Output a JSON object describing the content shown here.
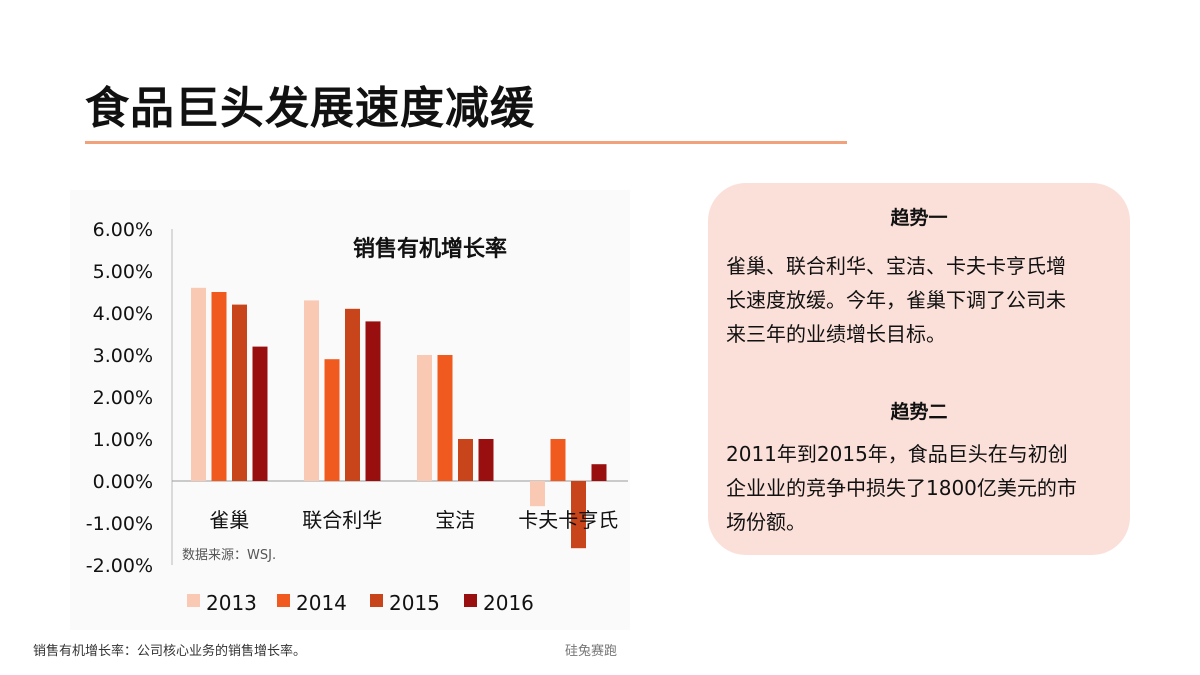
{
  "slide": {
    "title": "食品巨头发展速度减缓",
    "footnote": "销售有机增长率：公司核心业务的销售增长率。",
    "watermark": "硅兔赛跑",
    "accent_color": "#f2a27a"
  },
  "trends": {
    "box_color": "#fbe0d9",
    "trend1_heading": "趋势一",
    "trend1_lines": [
      "雀巢、联合利华、宝洁、卡夫卡亨氏增",
      "长速度放缓。今年，雀巢下调了公司未",
      "来三年的业绩增长目标。"
    ],
    "trend2_heading": "趋势二",
    "trend2_lines": [
      "2011年到2015年，食品巨头在与初创",
      "企业业的竞争中损失了1800亿美元的市",
      "场份额。"
    ]
  },
  "chart_data": {
    "type": "bar",
    "title": "销售有机增长率",
    "source": "数据来源：WSJ.",
    "categories": [
      "雀巢",
      "联合利华",
      "宝洁",
      "卡夫卡亨氏"
    ],
    "series": [
      {
        "name": "2013",
        "color": "#f9c9b4",
        "values": [
          4.6,
          4.3,
          3.0,
          -0.6
        ]
      },
      {
        "name": "2014",
        "color": "#f05a1f",
        "values": [
          4.5,
          2.9,
          3.0,
          1.0
        ]
      },
      {
        "name": "2015",
        "color": "#c8441a",
        "values": [
          4.2,
          4.1,
          1.0,
          -1.6
        ]
      },
      {
        "name": "2016",
        "color": "#990f0f",
        "values": [
          3.2,
          3.8,
          1.0,
          0.4
        ]
      }
    ],
    "yticks": [
      "6.00%",
      "5.00%",
      "4.00%",
      "3.00%",
      "2.00%",
      "1.00%",
      "0.00%",
      "-1.00%",
      "-2.00%"
    ],
    "ylim": [
      -2,
      6
    ],
    "legend_position": "bottom"
  }
}
